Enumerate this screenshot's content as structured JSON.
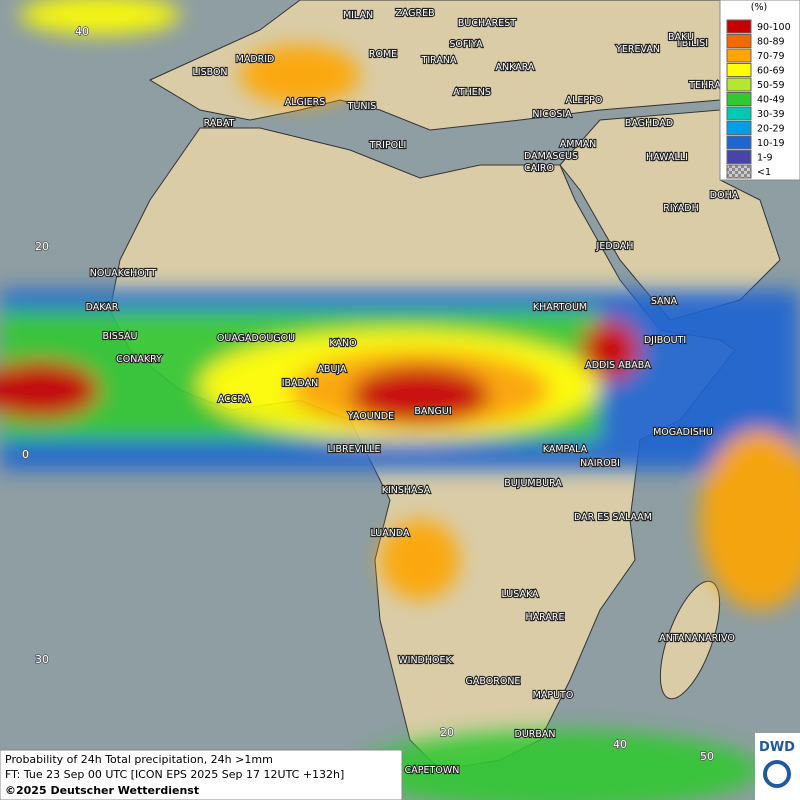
{
  "legend": {
    "title": "(%)",
    "items": [
      {
        "label": "90-100",
        "color": "#c80000"
      },
      {
        "label": "80-89",
        "color": "#f06a00"
      },
      {
        "label": "70-79",
        "color": "#ffa500"
      },
      {
        "label": "60-69",
        "color": "#ffff00"
      },
      {
        "label": "50-59",
        "color": "#b4e632"
      },
      {
        "label": "40-49",
        "color": "#32c832"
      },
      {
        "label": "30-39",
        "color": "#00c8b4"
      },
      {
        "label": "20-29",
        "color": "#00a0e6"
      },
      {
        "label": "10-19",
        "color": "#1e64d2"
      },
      {
        "label": "1-9",
        "color": "#4646aa"
      },
      {
        "label": "<1",
        "color": "#a0a0a0"
      }
    ]
  },
  "cities": [
    "MILAN",
    "ZAGREB",
    "BUCHAREST",
    "SOFIYA",
    "TBILISI",
    "BAKU",
    "YEREVAN",
    "MADRID",
    "ROME",
    "TIRANA",
    "ANKARA",
    "LISBON",
    "ATHENS",
    "TEHRA",
    "ALGIERS",
    "TUNIS",
    "ALEPPO",
    "NICOSIA",
    "BAGHDAD",
    "RABAT",
    "DAMASCUS",
    "AMMAN",
    "TRIPOLI",
    "HAWALLI",
    "CAIRO",
    "DOHA",
    "RIYADH",
    "NOUAKCHOTT",
    "JEDDAH",
    "DAKAR",
    "KHARTOUM",
    "SANA",
    "BISSAU",
    "OUAGADOUGOU",
    "KANO",
    "DJIBOUTI",
    "CONAKRY",
    "ABUJA",
    "ADDIS ABABA",
    "IBADAN",
    "ACCRA",
    "YAOUNDE",
    "BANGUI",
    "MOGADISHU",
    "LIBREVILLE",
    "KAMPALA",
    "NAIROBI",
    "BUJUMBURA",
    "KINSHASA",
    "DAR ES SALAAM",
    "LUANDA",
    "LUSAKA",
    "HARARE",
    "ANTANANARIVO",
    "WINDHOEK",
    "GABORONE",
    "MAPUTO",
    "DURBAN",
    "CAPETOWN"
  ],
  "grid_labels": [
    "40",
    "20",
    "0",
    "30",
    "20",
    "40",
    "50"
  ],
  "footer": {
    "line1": "Probability of 24h Total precipitation, 24h >1mm",
    "line2": "FT: Tue 23 Sep 00 UTC [ICON EPS 2025 Sep 17 12UTC +132h]",
    "line3": "©2025 Deutscher Wetterdienst"
  },
  "logo": "DWD"
}
